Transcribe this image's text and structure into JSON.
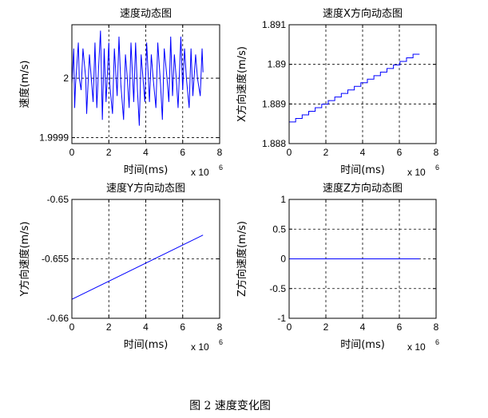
{
  "caption": "图 2  速度变化图",
  "chart_data": [
    {
      "type": "line",
      "title": "速度动态图",
      "xlabel": "时间(ms)",
      "ylabel": "速度(m/s)",
      "x_multiplier": "x 10",
      "x_multiplier_exp": "6",
      "xlim": [
        0,
        8
      ],
      "ylim": [
        1.99989,
        2.00009
      ],
      "xticks": [
        "0",
        "2",
        "4",
        "6",
        "8"
      ],
      "yticks": [
        {
          "v": 1.9999,
          "label": "1.9999"
        },
        {
          "v": 2.0,
          "label": "2"
        }
      ],
      "grid": true,
      "line_color": "#0000ff",
      "series": [
        {
          "x": [
            0.0,
            0.1,
            0.15,
            0.2,
            0.35,
            0.4,
            0.5,
            0.6,
            0.75,
            0.8,
            0.95,
            1.05,
            1.15,
            1.25,
            1.35,
            1.45,
            1.55,
            1.65,
            1.75,
            1.85,
            2.0,
            2.05,
            2.2,
            2.3,
            2.45,
            2.55,
            2.65,
            2.8,
            2.9,
            3.0,
            3.1,
            3.2,
            3.35,
            3.45,
            3.55,
            3.65,
            3.75,
            3.85,
            3.95,
            4.05,
            4.2,
            4.3,
            4.4,
            4.55,
            4.65,
            4.8,
            4.9,
            5.0,
            5.15,
            5.25,
            5.35,
            5.45,
            5.55,
            5.65,
            5.75,
            5.9,
            6.0,
            6.1,
            6.2,
            6.35,
            6.45,
            6.55,
            6.7,
            6.8,
            6.95,
            7.05,
            7.1
          ],
          "y": [
            1.99999,
            2.00005,
            1.99995,
            1.99999,
            2.00006,
            2.0,
            1.99998,
            2.00005,
            2.0,
            1.99994,
            2.00004,
            2.0,
            1.99996,
            2.00006,
            1.99995,
            2.00002,
            2.00008,
            1.99993,
            2.00005,
            1.99996,
            2.00006,
            1.99999,
            1.99994,
            2.00005,
            1.99997,
            2.00007,
            1.99999,
            1.99993,
            2.00004,
            2.0,
            1.99995,
            2.00006,
            1.99996,
            2.00006,
            1.99998,
            1.99992,
            2.00004,
            2.0,
            1.99996,
            2.00006,
            1.99996,
            2.00004,
            2.0,
            1.99995,
            2.00006,
            1.99999,
            1.99993,
            2.00005,
            2.0,
            1.99996,
            2.00007,
            1.99997,
            2.00004,
            2.0,
            1.99995,
            2.00007,
            1.99998,
            2.00005,
            2.0,
            1.99995,
            2.00005,
            1.99997,
            2.00004,
            2.0,
            1.99997,
            2.00005,
            2.00001
          ]
        }
      ]
    },
    {
      "type": "line",
      "title": "速度X方向动态图",
      "xlabel": "时间(ms)",
      "ylabel": "X方向速度(m/s)",
      "x_multiplier": "x 10",
      "x_multiplier_exp": "6",
      "xlim": [
        0,
        8
      ],
      "ylim": [
        1.888,
        1.891
      ],
      "xticks": [
        "0",
        "2",
        "4",
        "6",
        "8"
      ],
      "yticks": [
        {
          "v": 1.888,
          "label": "1.888"
        },
        {
          "v": 1.889,
          "label": "1.889"
        },
        {
          "v": 1.89,
          "label": "1.89"
        },
        {
          "v": 1.891,
          "label": "1.891"
        }
      ],
      "grid": true,
      "line_color": "#0000ff",
      "series": [
        {
          "x": [
            0.0,
            7.1
          ],
          "y": [
            1.8885,
            1.8903
          ],
          "steps": 20
        }
      ]
    },
    {
      "type": "line",
      "title": "速度Y方向动态图",
      "xlabel": "时间(ms)",
      "ylabel": "Y方向速度(m/s)",
      "x_multiplier": "x 10",
      "x_multiplier_exp": "6",
      "xlim": [
        0,
        8
      ],
      "ylim": [
        -0.66,
        -0.65
      ],
      "xticks": [
        "0",
        "2",
        "4",
        "6",
        "8"
      ],
      "yticks": [
        {
          "v": -0.66,
          "label": "-0.66"
        },
        {
          "v": -0.655,
          "label": "-0.655"
        },
        {
          "v": -0.65,
          "label": "-0.65"
        }
      ],
      "grid": true,
      "line_color": "#0000ff",
      "series": [
        {
          "x": [
            0.0,
            7.1
          ],
          "y": [
            -0.6584,
            -0.653
          ]
        }
      ]
    },
    {
      "type": "line",
      "title": "速度Z方向动态图",
      "xlabel": "时间(ms)",
      "ylabel": "Z方向速度(m/s)",
      "x_multiplier": "x 10",
      "x_multiplier_exp": "6",
      "xlim": [
        0,
        8
      ],
      "ylim": [
        -1,
        1
      ],
      "xticks": [
        "0",
        "2",
        "4",
        "6",
        "8"
      ],
      "yticks": [
        {
          "v": -1,
          "label": "-1"
        },
        {
          "v": -0.5,
          "label": "-0.5"
        },
        {
          "v": 0,
          "label": "0"
        },
        {
          "v": 0.5,
          "label": "0.5"
        },
        {
          "v": 1,
          "label": "1"
        }
      ],
      "grid": true,
      "line_color": "#0000ff",
      "series": [
        {
          "x": [
            0.0,
            7.1
          ],
          "y": [
            0,
            0
          ]
        }
      ]
    }
  ]
}
